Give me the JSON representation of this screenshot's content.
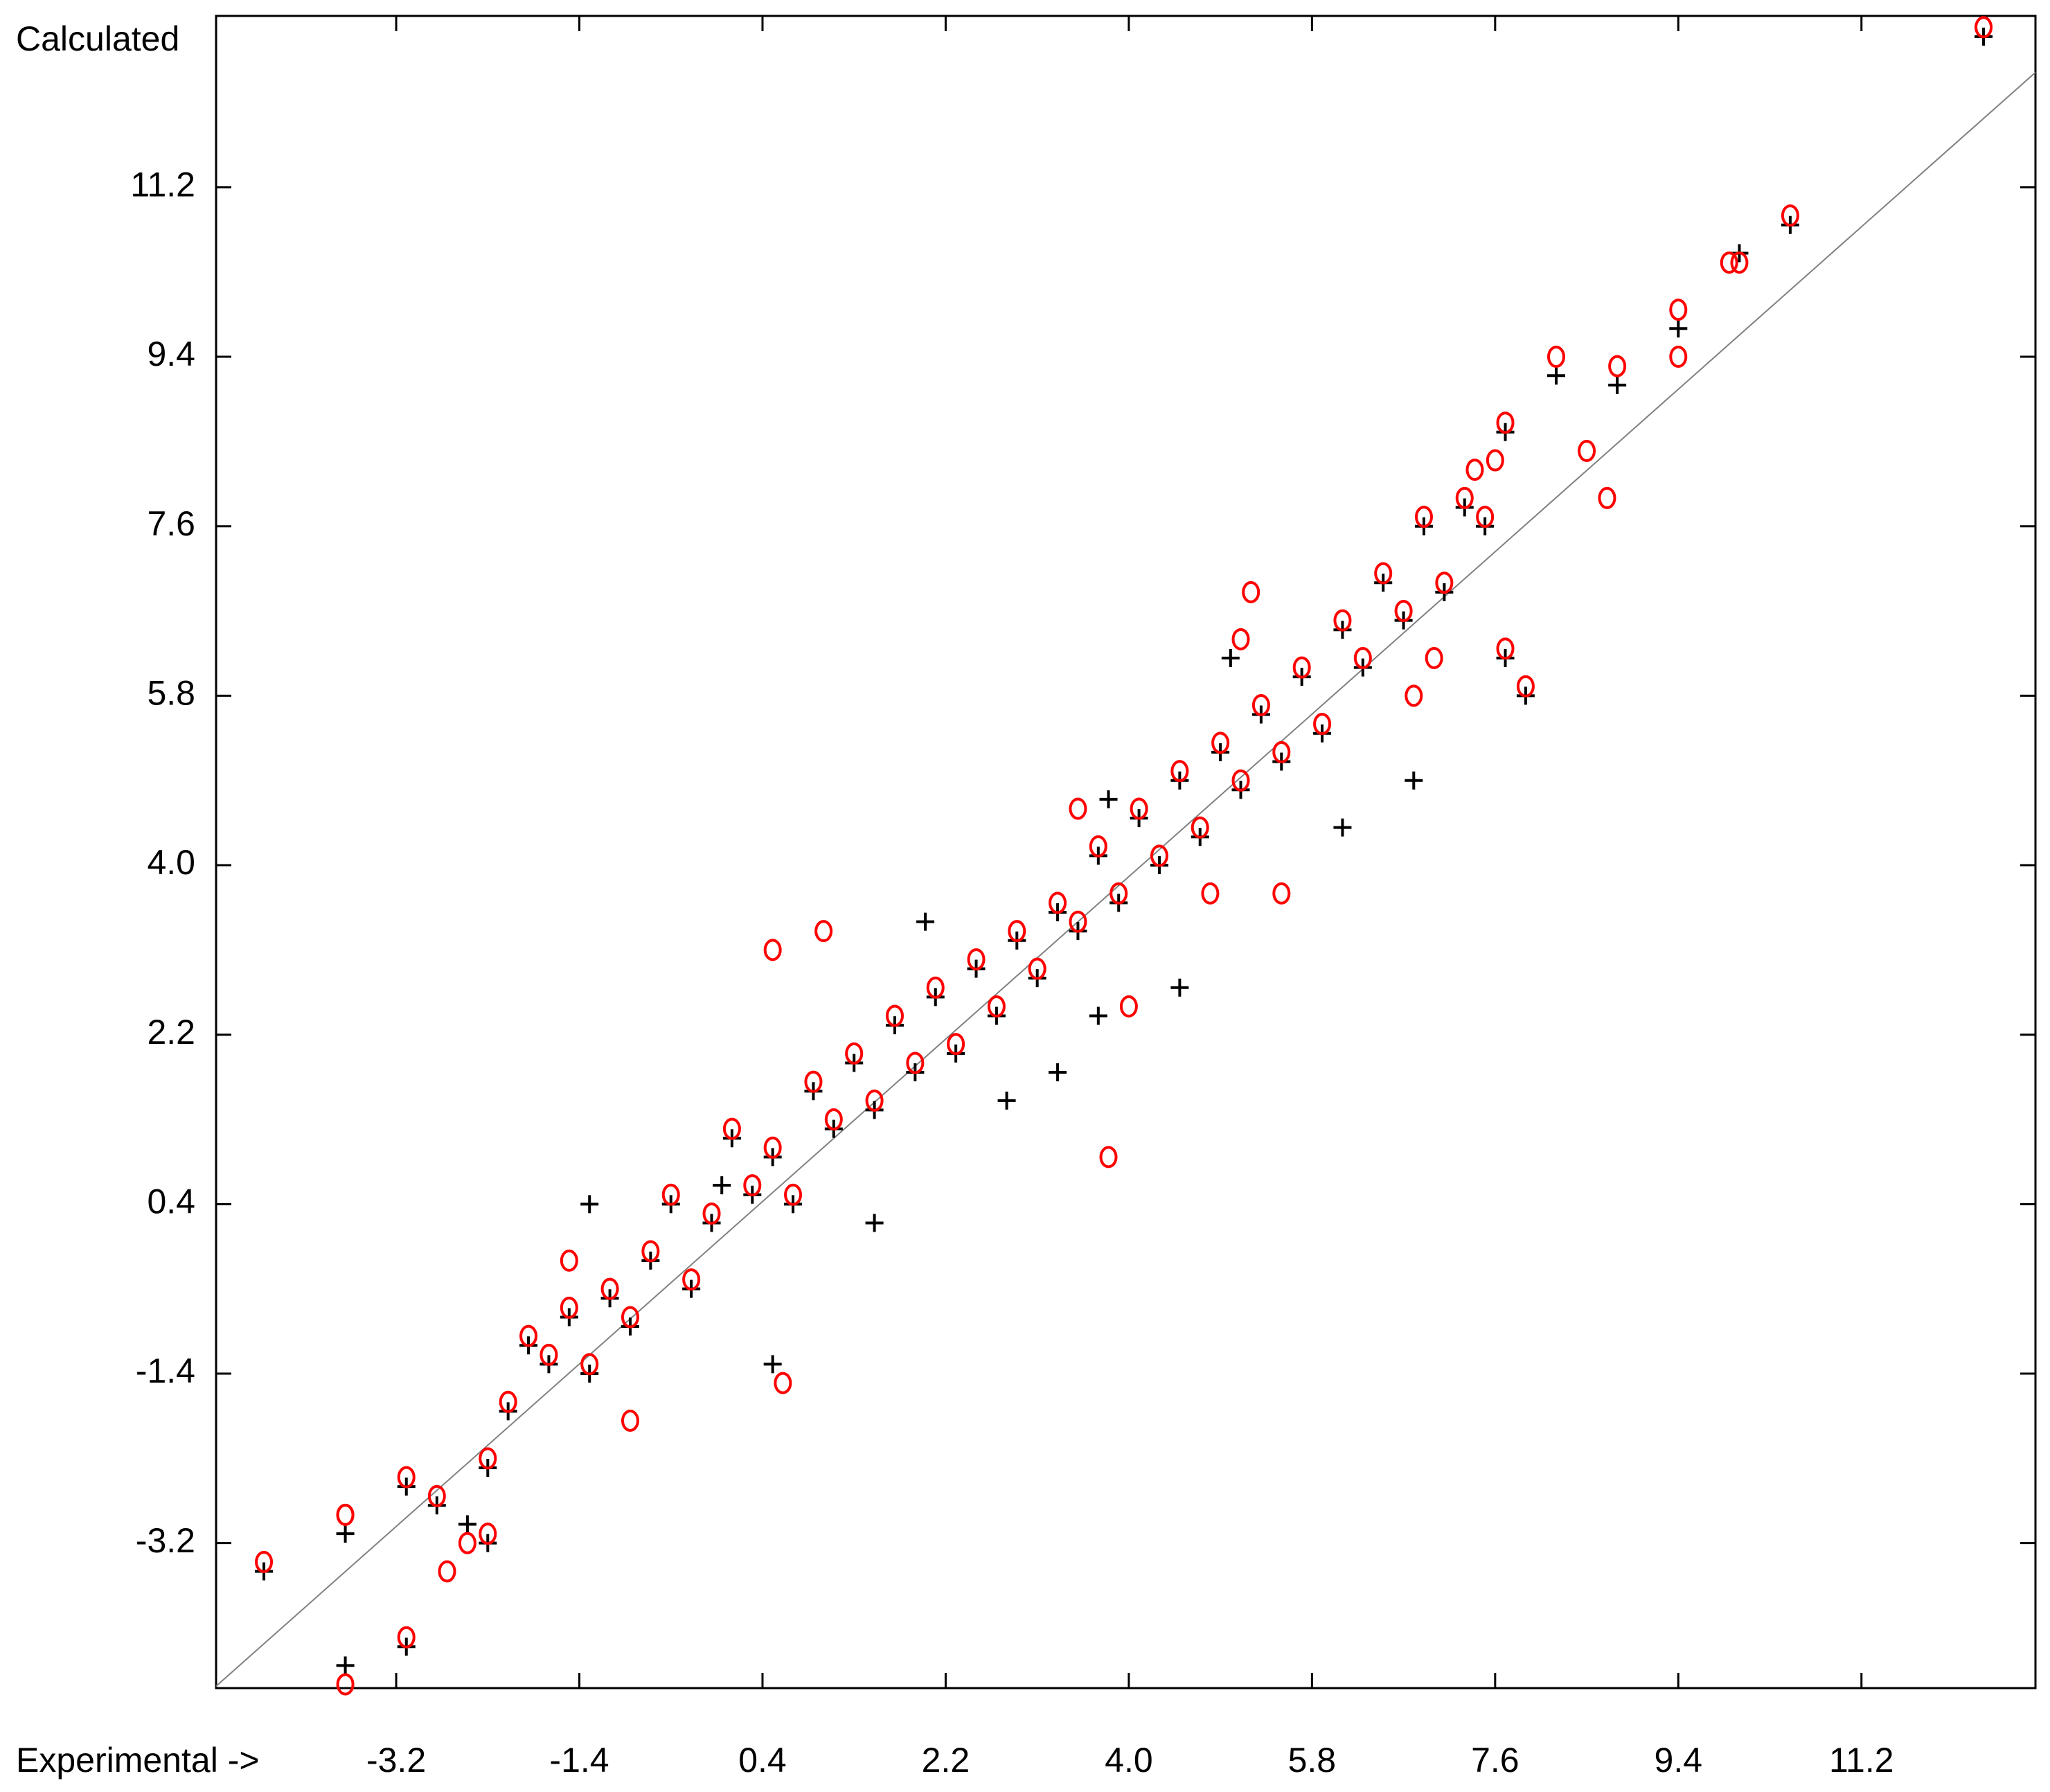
{
  "chart_data": {
    "type": "scatter",
    "y_label": "Calculated",
    "x_label": "Experimental ->",
    "xlim": [
      -4.97,
      12.91
    ],
    "ylim": [
      -4.74,
      13.02
    ],
    "xticks": [
      -3.2,
      -1.4,
      0.4,
      2.2,
      {
        "value": 4,
        "label": "4.0"
      },
      5.8,
      7.6,
      9.4,
      11.2
    ],
    "yticks": [
      -3.2,
      -1.4,
      0.4,
      2.2,
      {
        "value": 4,
        "label": "4.0"
      },
      5.8,
      7.6,
      9.4,
      11.2
    ],
    "reference_line": {
      "color": "#808080",
      "x": [
        -4.97,
        12.91
      ],
      "y": [
        -4.72,
        12.42
      ]
    },
    "series": [
      {
        "color": "#000000",
        "marker": "+",
        "x": [
          -4.5,
          -3.7,
          -3.7,
          -3.1,
          -3.1,
          -2.8,
          -2.5,
          -2.3,
          -2.3,
          -2.1,
          -1.9,
          -1.7,
          -1.5,
          -1.3,
          -1.1,
          -0.9,
          -0.7,
          -0.5,
          -0.3,
          -0.1,
          0.1,
          0.3,
          0.5,
          0.7,
          0.9,
          1.1,
          1.3,
          1.5,
          1.7,
          1.9,
          2.1,
          2.3,
          2.5,
          2.7,
          2.9,
          3.1,
          3.3,
          3.5,
          3.7,
          3.9,
          4.1,
          4.3,
          4.5,
          4.7,
          4.9,
          5.1,
          5.3,
          5.5,
          5.7,
          5.9,
          6.1,
          6.3,
          6.5,
          6.7,
          6.9,
          7.1,
          7.3,
          7.5,
          7.7,
          7.9,
          7.7,
          8.2,
          8.8,
          9.4,
          10.0,
          10.5,
          12.4,
          3.8,
          4.5,
          3.7,
          0.0,
          -1.3,
          0.5,
          1.5,
          2.0,
          2.8,
          5.0,
          6.1,
          6.8,
          3.3
        ],
        "y": [
          -3.5,
          -3.1,
          -4.5,
          -4.3,
          -2.6,
          -2.8,
          -3.0,
          -3.2,
          -2.4,
          -1.8,
          -1.1,
          -1.3,
          -0.8,
          -1.4,
          -0.6,
          -0.9,
          -0.2,
          0.4,
          -0.5,
          0.2,
          1.1,
          0.5,
          0.9,
          0.4,
          1.6,
          1.2,
          1.9,
          1.4,
          2.3,
          1.8,
          2.6,
          2.0,
          2.9,
          2.4,
          3.2,
          2.8,
          3.5,
          3.3,
          4.1,
          3.6,
          4.5,
          4.0,
          4.9,
          4.3,
          5.2,
          4.8,
          5.6,
          5.1,
          6.0,
          5.4,
          6.5,
          6.1,
          7.0,
          6.6,
          7.6,
          6.9,
          7.8,
          7.6,
          6.2,
          5.8,
          8.6,
          9.2,
          9.1,
          9.7,
          10.5,
          10.8,
          12.8,
          4.7,
          2.7,
          2.4,
          0.6,
          0.4,
          -1.3,
          0.2,
          3.4,
          1.5,
          6.2,
          4.4,
          4.9,
          1.8
        ]
      },
      {
        "color": "#ff0000",
        "marker": "o",
        "x": [
          -4.5,
          -3.7,
          -3.7,
          -3.1,
          -3.1,
          -2.8,
          -2.5,
          -2.3,
          -2.3,
          -2.1,
          -1.9,
          -1.7,
          -1.5,
          -1.3,
          -1.1,
          -0.9,
          -0.7,
          -0.5,
          -0.3,
          -0.1,
          0.1,
          0.3,
          0.5,
          0.7,
          0.9,
          1.1,
          1.3,
          1.5,
          1.7,
          1.9,
          2.1,
          2.3,
          2.5,
          2.7,
          2.9,
          3.1,
          3.3,
          3.5,
          3.7,
          3.9,
          4.1,
          4.3,
          4.5,
          4.7,
          4.9,
          5.1,
          5.3,
          5.5,
          5.7,
          5.9,
          6.1,
          6.3,
          6.5,
          6.7,
          6.9,
          7.1,
          7.3,
          7.5,
          7.7,
          7.9,
          7.7,
          8.2,
          8.8,
          9.4,
          10.0,
          10.5,
          12.4,
          0.5,
          3.8,
          4.8,
          5.5,
          5.2,
          1.0,
          -1.5,
          -0.9,
          0.6,
          -2.7,
          6.8,
          7.0,
          7.4,
          7.6,
          8.5,
          8.7,
          9.4,
          9.9,
          -3.7,
          5.1,
          4.0,
          3.5
        ],
        "y": [
          -3.4,
          -2.9,
          -4.7,
          -4.2,
          -2.5,
          -2.7,
          -3.2,
          -3.1,
          -2.3,
          -1.7,
          -1.0,
          -1.2,
          -0.7,
          -1.3,
          -0.5,
          -0.8,
          -0.1,
          0.5,
          -0.4,
          0.3,
          1.2,
          0.6,
          1.0,
          0.5,
          1.7,
          1.3,
          2.0,
          1.5,
          2.4,
          1.9,
          2.7,
          2.1,
          3.0,
          2.5,
          3.3,
          2.9,
          3.6,
          3.4,
          4.2,
          3.7,
          4.6,
          4.1,
          5.0,
          4.4,
          5.3,
          4.9,
          5.7,
          5.2,
          6.1,
          5.5,
          6.6,
          6.2,
          7.1,
          6.7,
          7.7,
          7.0,
          7.9,
          7.7,
          6.3,
          5.9,
          8.7,
          9.4,
          9.3,
          9.9,
          10.4,
          10.9,
          12.9,
          3.1,
          0.9,
          3.7,
          3.7,
          6.9,
          3.3,
          -0.2,
          -1.9,
          -1.5,
          -3.5,
          5.8,
          6.2,
          8.2,
          8.3,
          8.4,
          7.9,
          9.4,
          10.4,
          -2.9,
          6.4,
          2.5,
          4.6
        ]
      }
    ]
  }
}
